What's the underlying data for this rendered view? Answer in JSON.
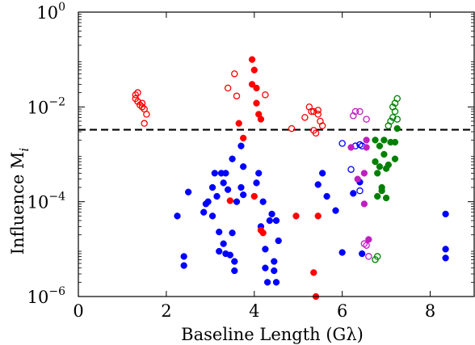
{
  "chart_data": {
    "type": "scatter",
    "xlabel": "Baseline Length (Gλ)",
    "ylabel": "Influence M",
    "ylabel_subscript": "i",
    "xlim": [
      0,
      9
    ],
    "ylim": [
      1e-06,
      1
    ],
    "yscale": "log",
    "x_ticks": [
      {
        "value": 0,
        "label": "0"
      },
      {
        "value": 2,
        "label": "2"
      },
      {
        "value": 4,
        "label": "4"
      },
      {
        "value": 6,
        "label": "6"
      },
      {
        "value": 8,
        "label": "8"
      }
    ],
    "y_ticks": [
      {
        "value": 1e-06,
        "base": "10",
        "exp": "−6"
      },
      {
        "value": 0.0001,
        "base": "10",
        "exp": "−4"
      },
      {
        "value": 0.01,
        "base": "10",
        "exp": "−2"
      },
      {
        "value": 1,
        "base": "10",
        "exp": "0"
      }
    ],
    "threshold": {
      "y": 0.0033,
      "style": "dashed",
      "color": "#000000"
    },
    "series": [
      {
        "color": "#0000ff",
        "filled": [
          [
            2.25,
            5e-05
          ],
          [
            2.4,
            7e-06
          ],
          [
            2.4,
            4.5e-06
          ],
          [
            2.5,
            0.00016
          ],
          [
            2.85,
            6e-05
          ],
          [
            2.9,
            9e-05
          ],
          [
            2.95,
            0.0001
          ],
          [
            3.05,
            0.0002
          ],
          [
            3.05,
            5e-05
          ],
          [
            3.1,
            0.0004
          ],
          [
            3.15,
            0.00013
          ],
          [
            3.2,
            2.3e-05
          ],
          [
            3.2,
            9e-06
          ],
          [
            3.25,
            0.0004
          ],
          [
            3.3,
            0.00025
          ],
          [
            3.3,
            1.3e-05
          ],
          [
            3.35,
            0.0004
          ],
          [
            3.35,
            8e-06
          ],
          [
            3.4,
            0.00018
          ],
          [
            3.45,
            7.5e-06
          ],
          [
            3.5,
            0.0008
          ],
          [
            3.5,
            2.2e-05
          ],
          [
            3.55,
            5.5e-06
          ],
          [
            3.55,
            3.5e-06
          ],
          [
            3.6,
            0.0001
          ],
          [
            3.7,
            0.0015
          ],
          [
            3.7,
            0.0002
          ],
          [
            3.75,
            0.00055
          ],
          [
            3.75,
            0.00014
          ],
          [
            4.05,
            0.00025
          ],
          [
            4.1,
            0.0004
          ],
          [
            4.15,
            3e-05
          ],
          [
            4.2,
            0.0001
          ],
          [
            4.25,
            1e-05
          ],
          [
            4.25,
            4e-06
          ],
          [
            4.3,
            2e-06
          ],
          [
            4.35,
            4e-05
          ],
          [
            4.4,
            5.5e-05
          ],
          [
            4.45,
            3.5e-06
          ],
          [
            4.45,
            5.5e-06
          ],
          [
            4.5,
            2e-06
          ],
          [
            4.55,
            1.5e-05
          ],
          [
            4.5,
            4e-05
          ],
          [
            5.45,
            0.00023
          ],
          [
            5.55,
            0.0004
          ],
          [
            5.65,
            0.00013
          ],
          [
            5.85,
            6.5e-05
          ],
          [
            6.0,
            8.5e-06
          ],
          [
            6.25,
            0.00015
          ],
          [
            6.4,
            0.00026
          ],
          [
            6.45,
            8e-06
          ],
          [
            8.35,
            5.5e-05
          ],
          [
            8.35,
            1e-05
          ],
          [
            8.35,
            6.5e-06
          ]
        ],
        "open": [
          [
            6.0,
            0.0017
          ],
          [
            6.2,
            0.00048
          ],
          [
            6.3,
            0.0015
          ],
          [
            6.4,
            0.0016
          ],
          [
            6.4,
            0.00017
          ],
          [
            6.45,
            0.0015
          ]
        ]
      },
      {
        "color": "#ff0000",
        "filled": [
          [
            3.65,
            0.0045
          ],
          [
            3.75,
            0.0022
          ],
          [
            3.45,
            0.000105
          ],
          [
            3.95,
            0.1
          ],
          [
            4.0,
            0.06
          ],
          [
            3.95,
            0.03
          ],
          [
            4.05,
            0.025
          ],
          [
            4.0,
            0.00013
          ],
          [
            4.05,
            0.012
          ],
          [
            4.1,
            0.007
          ],
          [
            4.15,
            0.0055
          ],
          [
            4.15,
            2.5e-05
          ],
          [
            4.2,
            2.2e-05
          ],
          [
            4.95,
            5e-05
          ],
          [
            5.35,
            3.2e-06
          ],
          [
            5.4,
            1e-06
          ],
          [
            5.45,
            5e-05
          ]
        ],
        "open": [
          [
            1.3,
            0.015
          ],
          [
            1.3,
            0.018
          ],
          [
            1.35,
            0.02
          ],
          [
            1.35,
            0.013
          ],
          [
            1.4,
            0.011
          ],
          [
            1.45,
            0.01
          ],
          [
            1.45,
            0.012
          ],
          [
            1.5,
            0.009
          ],
          [
            1.5,
            0.0045
          ],
          [
            1.55,
            0.007
          ],
          [
            3.4,
            0.025
          ],
          [
            3.55,
            0.05
          ],
          [
            3.6,
            0.017
          ],
          [
            4.25,
            0.018
          ],
          [
            4.85,
            0.0035
          ],
          [
            5.15,
            0.006
          ],
          [
            5.25,
            0.01
          ],
          [
            5.3,
            0.008
          ],
          [
            5.35,
            0.008
          ],
          [
            5.35,
            0.0032
          ],
          [
            5.4,
            0.0028
          ],
          [
            5.45,
            0.007
          ],
          [
            5.45,
            0.0085
          ],
          [
            5.5,
            0.005
          ],
          [
            5.55,
            0.004
          ]
        ]
      },
      {
        "color": "#c020c0",
        "filled": [
          [
            6.2,
            0.0014
          ],
          [
            6.35,
            0.0003
          ],
          [
            6.5,
            0.0004
          ],
          [
            6.5,
            9e-05
          ],
          [
            6.55,
            0.0014
          ],
          [
            6.55,
            0.002
          ],
          [
            6.6,
            1.6e-05
          ]
        ],
        "open": [
          [
            6.25,
            0.0065
          ],
          [
            6.3,
            0.008
          ],
          [
            6.4,
            0.008
          ],
          [
            6.5,
            1.3e-05
          ],
          [
            6.55,
            0.0055
          ],
          [
            6.55,
            1.2e-05
          ],
          [
            6.6,
            7e-06
          ]
        ]
      },
      {
        "color": "#008000",
        "filled": [
          [
            6.75,
            0.002
          ],
          [
            6.75,
            0.0007
          ],
          [
            6.8,
            0.0004
          ],
          [
            6.8,
            0.00013
          ],
          [
            6.85,
            0.0015
          ],
          [
            6.85,
            0.00055
          ],
          [
            6.9,
            0.0002
          ],
          [
            6.9,
            0.00017
          ],
          [
            6.95,
            0.002
          ],
          [
            6.95,
            0.001
          ],
          [
            7.0,
            0.0005
          ],
          [
            7.0,
            0.00012
          ],
          [
            7.05,
            0.0006
          ],
          [
            7.1,
            0.0018
          ],
          [
            7.2,
            0.0018
          ],
          [
            7.25,
            0.0035
          ],
          [
            7.2,
            0.0008
          ]
        ],
        "open": [
          [
            6.75,
            6e-06
          ],
          [
            6.8,
            7e-06
          ],
          [
            7.05,
            0.004
          ],
          [
            7.1,
            0.005
          ],
          [
            7.15,
            0.006
          ],
          [
            7.15,
            0.01
          ],
          [
            7.2,
            0.008
          ],
          [
            7.2,
            0.012
          ],
          [
            7.25,
            0.015
          ],
          [
            7.25,
            0.0055
          ]
        ]
      }
    ]
  }
}
